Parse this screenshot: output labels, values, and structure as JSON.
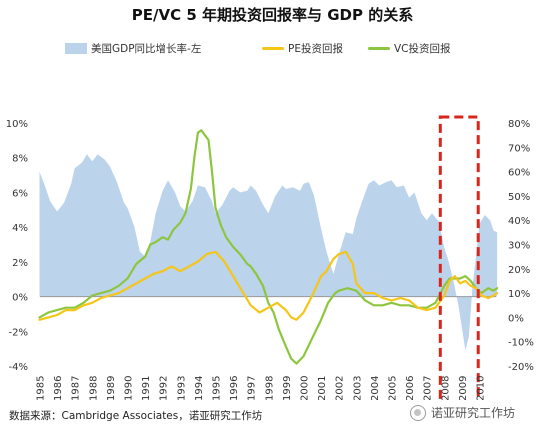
{
  "title": "PE/VC 5 年期投资回报率与 GDP 的关系",
  "source": "数据来源：Cambridge Associates，诺亚研究工作坊",
  "watermark": "诺亚研究工作坊",
  "colors": {
    "gdp": "#bcd3ec",
    "pe": "#f5c518",
    "vc": "#8cc63f",
    "highlight": "#d9261c"
  },
  "chart_data": {
    "type": "area",
    "x_ticks": [
      "1985",
      "1986",
      "1987",
      "1988",
      "1989",
      "1990",
      "1991",
      "1992",
      "1993",
      "1994",
      "1995",
      "1996",
      "1997",
      "1998",
      "1999",
      "2000",
      "2001",
      "2002",
      "2003",
      "2004",
      "2005",
      "2006",
      "2007",
      "2008",
      "2009",
      "2010"
    ],
    "xlim": [
      1985,
      2011
    ],
    "y_left": {
      "ticks": [
        "10%",
        "8%",
        "6%",
        "4%",
        "2%",
        "0%",
        "-2%",
        "-4%"
      ],
      "ylim": [
        -4,
        10
      ]
    },
    "y_right": {
      "ticks": [
        "80%",
        "70%",
        "60%",
        "50%",
        "40%",
        "30%",
        "20%",
        "10%",
        "0%",
        "-10%",
        "-20%"
      ],
      "ylim": [
        -20,
        80
      ]
    },
    "highlight": {
      "x_start": 2008,
      "x_end": 2009.7,
      "style": "red-dashed-box"
    },
    "series": [
      {
        "name": "美国GDP同比增长率-左",
        "kind": "area",
        "axis": "left",
        "color": "#bcd3ec",
        "points": [
          [
            1985,
            7.2
          ],
          [
            1985.3,
            6.4
          ],
          [
            1985.6,
            5.5
          ],
          [
            1986,
            4.9
          ],
          [
            1986.4,
            5.4
          ],
          [
            1986.8,
            6.5
          ],
          [
            1987,
            7.4
          ],
          [
            1987.4,
            7.7
          ],
          [
            1987.7,
            8.2
          ],
          [
            1988,
            7.8
          ],
          [
            1988.3,
            8.2
          ],
          [
            1988.7,
            7.9
          ],
          [
            1989,
            7.5
          ],
          [
            1989.4,
            6.6
          ],
          [
            1989.8,
            5.4
          ],
          [
            1990,
            5.1
          ],
          [
            1990.4,
            4.0
          ],
          [
            1990.7,
            2.6
          ],
          [
            1991,
            2.3
          ],
          [
            1991.3,
            3.2
          ],
          [
            1991.6,
            4.8
          ],
          [
            1992,
            6.1
          ],
          [
            1992.3,
            6.7
          ],
          [
            1992.7,
            6.0
          ],
          [
            1993,
            5.2
          ],
          [
            1993.3,
            4.9
          ],
          [
            1993.7,
            5.5
          ],
          [
            1994,
            6.4
          ],
          [
            1994.4,
            6.3
          ],
          [
            1994.8,
            5.5
          ],
          [
            1995,
            4.8
          ],
          [
            1995.4,
            5.3
          ],
          [
            1995.8,
            6.1
          ],
          [
            1996,
            6.3
          ],
          [
            1996.4,
            6.0
          ],
          [
            1996.8,
            6.1
          ],
          [
            1997,
            6.4
          ],
          [
            1997.3,
            6.1
          ],
          [
            1997.7,
            5.3
          ],
          [
            1998,
            4.8
          ],
          [
            1998.4,
            5.8
          ],
          [
            1998.8,
            6.4
          ],
          [
            1999,
            6.2
          ],
          [
            1999.4,
            6.3
          ],
          [
            1999.8,
            6.1
          ],
          [
            2000,
            6.5
          ],
          [
            2000.3,
            6.6
          ],
          [
            2000.6,
            5.8
          ],
          [
            2001,
            3.9
          ],
          [
            2001.3,
            2.6
          ],
          [
            2001.7,
            1.3
          ],
          [
            2002,
            2.4
          ],
          [
            2002.4,
            3.7
          ],
          [
            2002.8,
            3.6
          ],
          [
            2003,
            4.5
          ],
          [
            2003.3,
            5.4
          ],
          [
            2003.7,
            6.5
          ],
          [
            2004,
            6.7
          ],
          [
            2004.3,
            6.4
          ],
          [
            2004.7,
            6.6
          ],
          [
            2005,
            6.7
          ],
          [
            2005.3,
            6.3
          ],
          [
            2005.7,
            6.4
          ],
          [
            2006,
            5.7
          ],
          [
            2006.3,
            6.0
          ],
          [
            2006.7,
            4.8
          ],
          [
            2007,
            4.4
          ],
          [
            2007.3,
            4.8
          ],
          [
            2007.7,
            4.3
          ],
          [
            2008,
            2.8
          ],
          [
            2008.2,
            2.2
          ],
          [
            2008.5,
            1.0
          ],
          [
            2008.8,
            -0.5
          ],
          [
            2009,
            -1.8
          ],
          [
            2009.2,
            -3.1
          ],
          [
            2009.4,
            -2.3
          ],
          [
            2009.6,
            0.6
          ],
          [
            2009.8,
            2.3
          ],
          [
            2010,
            4.2
          ],
          [
            2010.3,
            4.7
          ],
          [
            2010.6,
            4.4
          ],
          [
            2010.8,
            3.8
          ],
          [
            2011,
            3.7
          ]
        ]
      },
      {
        "name": "PE投资回报",
        "kind": "line",
        "axis": "right",
        "color": "#f5c518",
        "points": [
          [
            1985,
            -1
          ],
          [
            1985.5,
            0
          ],
          [
            1986,
            1
          ],
          [
            1986.5,
            3
          ],
          [
            1987,
            3
          ],
          [
            1987.5,
            5
          ],
          [
            1988,
            6
          ],
          [
            1988.5,
            8
          ],
          [
            1989,
            9
          ],
          [
            1989.5,
            10
          ],
          [
            1990,
            12
          ],
          [
            1990.5,
            14
          ],
          [
            1991,
            16
          ],
          [
            1991.5,
            18
          ],
          [
            1992,
            19
          ],
          [
            1992.5,
            21
          ],
          [
            1993,
            19
          ],
          [
            1993.5,
            21
          ],
          [
            1994,
            23
          ],
          [
            1994.5,
            26
          ],
          [
            1995,
            27
          ],
          [
            1995.5,
            23
          ],
          [
            1996,
            17
          ],
          [
            1996.5,
            11
          ],
          [
            1997,
            5
          ],
          [
            1997.5,
            2
          ],
          [
            1998,
            4
          ],
          [
            1998.5,
            6
          ],
          [
            1999,
            3
          ],
          [
            1999.3,
            0
          ],
          [
            1999.6,
            -1
          ],
          [
            2000,
            2
          ],
          [
            2000.5,
            9
          ],
          [
            2001,
            17
          ],
          [
            2001.3,
            19
          ],
          [
            2001.7,
            24
          ],
          [
            2002,
            26
          ],
          [
            2002.4,
            27
          ],
          [
            2002.8,
            22
          ],
          [
            2003,
            14
          ],
          [
            2003.5,
            10
          ],
          [
            2004,
            10
          ],
          [
            2004.5,
            8
          ],
          [
            2005,
            7
          ],
          [
            2005.5,
            8
          ],
          [
            2006,
            7
          ],
          [
            2006.5,
            4
          ],
          [
            2007,
            3
          ],
          [
            2007.5,
            4
          ],
          [
            2008,
            9
          ],
          [
            2008.3,
            15
          ],
          [
            2008.6,
            17
          ],
          [
            2008.9,
            14
          ],
          [
            2009.2,
            15
          ],
          [
            2009.5,
            13
          ],
          [
            2009.8,
            12
          ],
          [
            2010.1,
            9
          ],
          [
            2010.5,
            8
          ],
          [
            2010.8,
            9
          ],
          [
            2011,
            10
          ]
        ]
      },
      {
        "name": "VC投资回报",
        "kind": "line",
        "axis": "right",
        "color": "#8cc63f",
        "points": [
          [
            1985,
            0
          ],
          [
            1985.5,
            2
          ],
          [
            1986,
            3
          ],
          [
            1986.5,
            4
          ],
          [
            1987,
            4
          ],
          [
            1987.5,
            6
          ],
          [
            1988,
            9
          ],
          [
            1988.5,
            10
          ],
          [
            1989,
            11
          ],
          [
            1989.5,
            13
          ],
          [
            1990,
            16
          ],
          [
            1990.5,
            22
          ],
          [
            1991,
            25
          ],
          [
            1991.3,
            30
          ],
          [
            1991.6,
            31
          ],
          [
            1992,
            33
          ],
          [
            1992.3,
            32
          ],
          [
            1992.6,
            36
          ],
          [
            1993,
            39
          ],
          [
            1993.3,
            43
          ],
          [
            1993.6,
            53
          ],
          [
            1993.8,
            66
          ],
          [
            1994,
            76
          ],
          [
            1994.2,
            77
          ],
          [
            1994.4,
            75
          ],
          [
            1994.6,
            73
          ],
          [
            1994.8,
            60
          ],
          [
            1995,
            45
          ],
          [
            1995.3,
            38
          ],
          [
            1995.6,
            33
          ],
          [
            1996,
            29
          ],
          [
            1996.4,
            26
          ],
          [
            1996.8,
            22
          ],
          [
            1997,
            21
          ],
          [
            1997.3,
            18
          ],
          [
            1997.7,
            13
          ],
          [
            1998,
            6
          ],
          [
            1998.3,
            2
          ],
          [
            1998.6,
            -5
          ],
          [
            1999,
            -12
          ],
          [
            1999.3,
            -17
          ],
          [
            1999.6,
            -19
          ],
          [
            2000,
            -16
          ],
          [
            2000.4,
            -10
          ],
          [
            2000.8,
            -4
          ],
          [
            2001,
            -1
          ],
          [
            2001.4,
            6
          ],
          [
            2001.8,
            10
          ],
          [
            2002,
            11
          ],
          [
            2002.5,
            12
          ],
          [
            2003,
            11
          ],
          [
            2003.5,
            7
          ],
          [
            2004,
            5
          ],
          [
            2004.5,
            5
          ],
          [
            2005,
            6
          ],
          [
            2005.5,
            5
          ],
          [
            2006,
            5
          ],
          [
            2006.5,
            4
          ],
          [
            2007,
            4
          ],
          [
            2007.5,
            6
          ],
          [
            2008,
            13
          ],
          [
            2008.3,
            16
          ],
          [
            2008.6,
            16
          ],
          [
            2008.9,
            16
          ],
          [
            2009.2,
            17
          ],
          [
            2009.5,
            15
          ],
          [
            2009.8,
            12
          ],
          [
            2010.1,
            10
          ],
          [
            2010.5,
            12
          ],
          [
            2010.8,
            11
          ],
          [
            2011,
            12
          ]
        ]
      }
    ]
  }
}
